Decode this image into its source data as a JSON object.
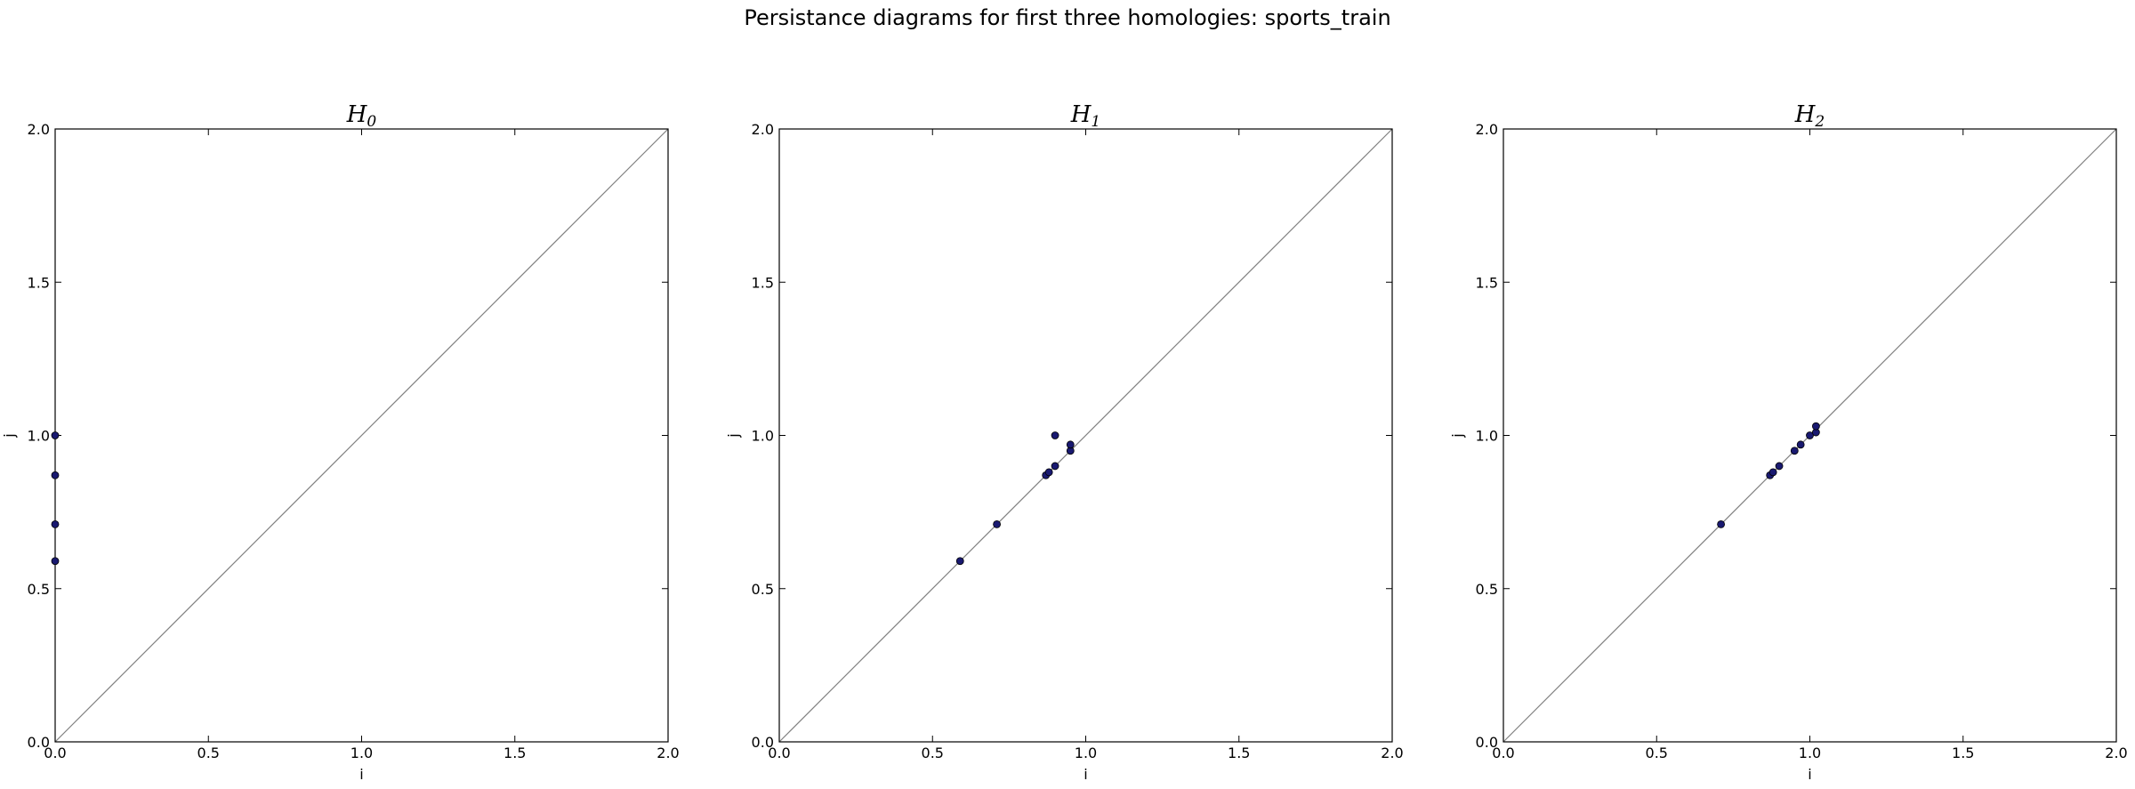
{
  "figure_title": "Persistance diagrams for first three homologies: sports_train",
  "chart_data": [
    {
      "type": "scatter",
      "title": "H",
      "title_subscript": "0",
      "xlabel": "i",
      "ylabel": "j",
      "xlim": [
        0,
        2
      ],
      "ylim": [
        0,
        2
      ],
      "xticks": [
        "0.0",
        "0.5",
        "1.0",
        "1.5",
        "2.0"
      ],
      "yticks": [
        "0.0",
        "0.5",
        "1.0",
        "1.5",
        "2.0"
      ],
      "diagonal": true,
      "grid": false,
      "marker_color": "#191970",
      "points": [
        {
          "x": 0.0,
          "y": 0.59
        },
        {
          "x": 0.0,
          "y": 0.71
        },
        {
          "x": 0.0,
          "y": 0.87
        },
        {
          "x": 0.0,
          "y": 1.0
        }
      ]
    },
    {
      "type": "scatter",
      "title": "H",
      "title_subscript": "1",
      "xlabel": "i",
      "ylabel": "j",
      "xlim": [
        0,
        2
      ],
      "ylim": [
        0,
        2
      ],
      "xticks": [
        "0.0",
        "0.5",
        "1.0",
        "1.5",
        "2.0"
      ],
      "yticks": [
        "0.0",
        "0.5",
        "1.0",
        "1.5",
        "2.0"
      ],
      "diagonal": true,
      "grid": false,
      "marker_color": "#191970",
      "points": [
        {
          "x": 0.59,
          "y": 0.59
        },
        {
          "x": 0.71,
          "y": 0.71
        },
        {
          "x": 0.87,
          "y": 0.87
        },
        {
          "x": 0.88,
          "y": 0.88
        },
        {
          "x": 0.9,
          "y": 0.9
        },
        {
          "x": 0.9,
          "y": 1.0
        },
        {
          "x": 0.95,
          "y": 0.95
        },
        {
          "x": 0.95,
          "y": 0.97
        }
      ]
    },
    {
      "type": "scatter",
      "title": "H",
      "title_subscript": "2",
      "xlabel": "i",
      "ylabel": "j",
      "xlim": [
        0,
        2
      ],
      "ylim": [
        0,
        2
      ],
      "xticks": [
        "0.0",
        "0.5",
        "1.0",
        "1.5",
        "2.0"
      ],
      "yticks": [
        "0.0",
        "0.5",
        "1.0",
        "1.5",
        "2.0"
      ],
      "diagonal": true,
      "grid": false,
      "marker_color": "#191970",
      "points": [
        {
          "x": 0.71,
          "y": 0.71
        },
        {
          "x": 0.87,
          "y": 0.87
        },
        {
          "x": 0.88,
          "y": 0.88
        },
        {
          "x": 0.9,
          "y": 0.9
        },
        {
          "x": 0.95,
          "y": 0.95
        },
        {
          "x": 0.97,
          "y": 0.97
        },
        {
          "x": 1.0,
          "y": 1.0
        },
        {
          "x": 1.02,
          "y": 1.01
        },
        {
          "x": 1.02,
          "y": 1.03
        }
      ]
    }
  ]
}
